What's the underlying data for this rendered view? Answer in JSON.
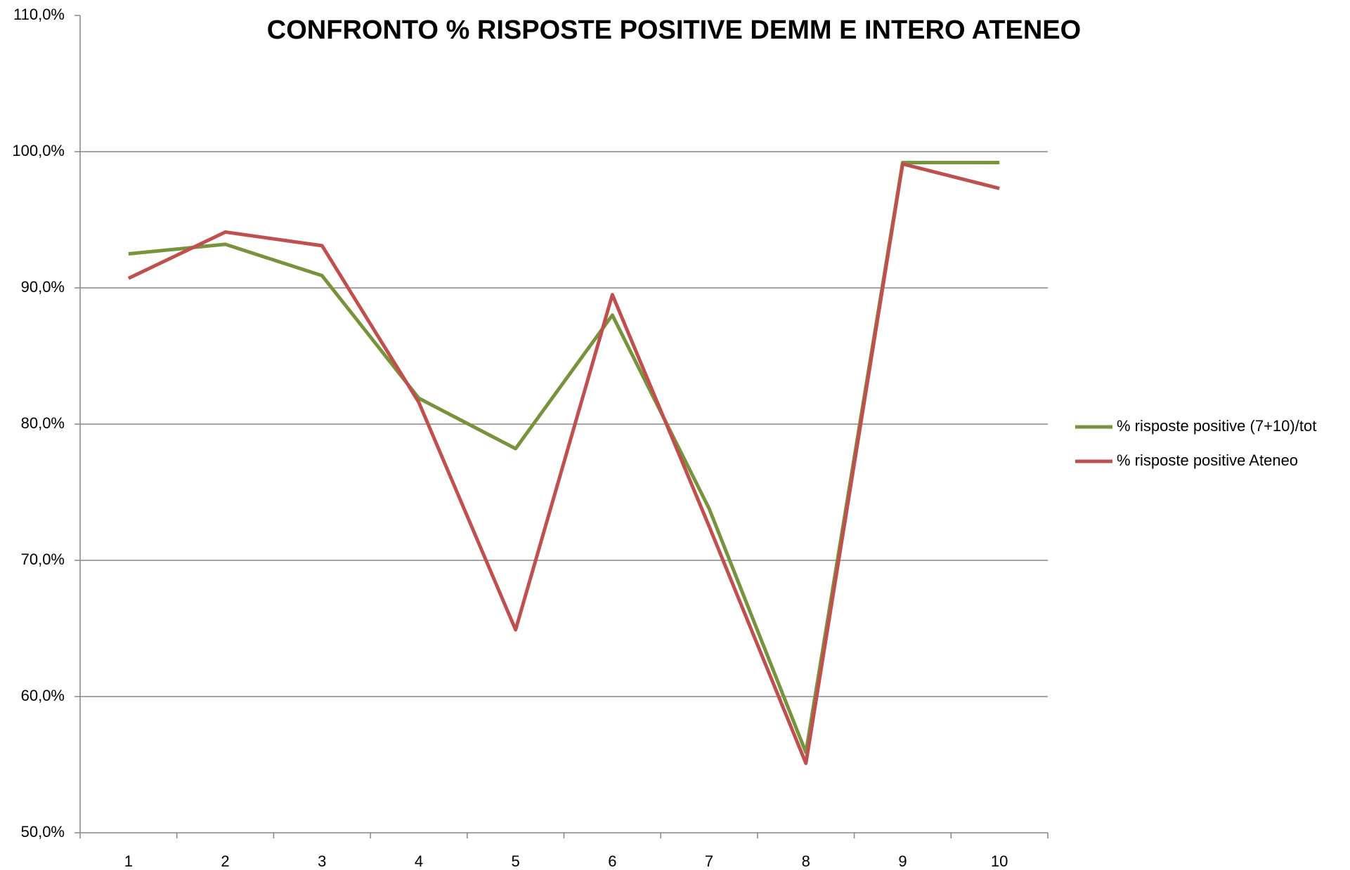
{
  "chart_data": {
    "type": "line",
    "title": "CONFRONTO % RISPOSTE POSITIVE DEMM E INTERO ATENEO",
    "categories": [
      "1",
      "2",
      "3",
      "4",
      "5",
      "6",
      "7",
      "8",
      "9",
      "10"
    ],
    "series": [
      {
        "name": "% risposte positive (7+10)/tot",
        "color": "#77933c",
        "values": [
          92.5,
          93.2,
          90.9,
          81.9,
          78.2,
          88.0,
          73.8,
          55.9,
          99.2,
          99.2
        ]
      },
      {
        "name": "% risposte positive Ateneo",
        "color": "#c0504d",
        "values": [
          90.7,
          94.1,
          93.1,
          81.6,
          64.9,
          89.5,
          72.5,
          55.1,
          99.1,
          97.3
        ]
      }
    ],
    "ylim": [
      50,
      110
    ],
    "yticks": [
      {
        "value": 50,
        "label": "50,0%"
      },
      {
        "value": 60,
        "label": "60,0%"
      },
      {
        "value": 70,
        "label": "70,0%"
      },
      {
        "value": 80,
        "label": "80,0%"
      },
      {
        "value": 90,
        "label": "90,0%"
      },
      {
        "value": 100,
        "label": "100,0%"
      },
      {
        "value": 110,
        "label": "110,0%"
      }
    ],
    "grid": true,
    "legend": "right"
  }
}
